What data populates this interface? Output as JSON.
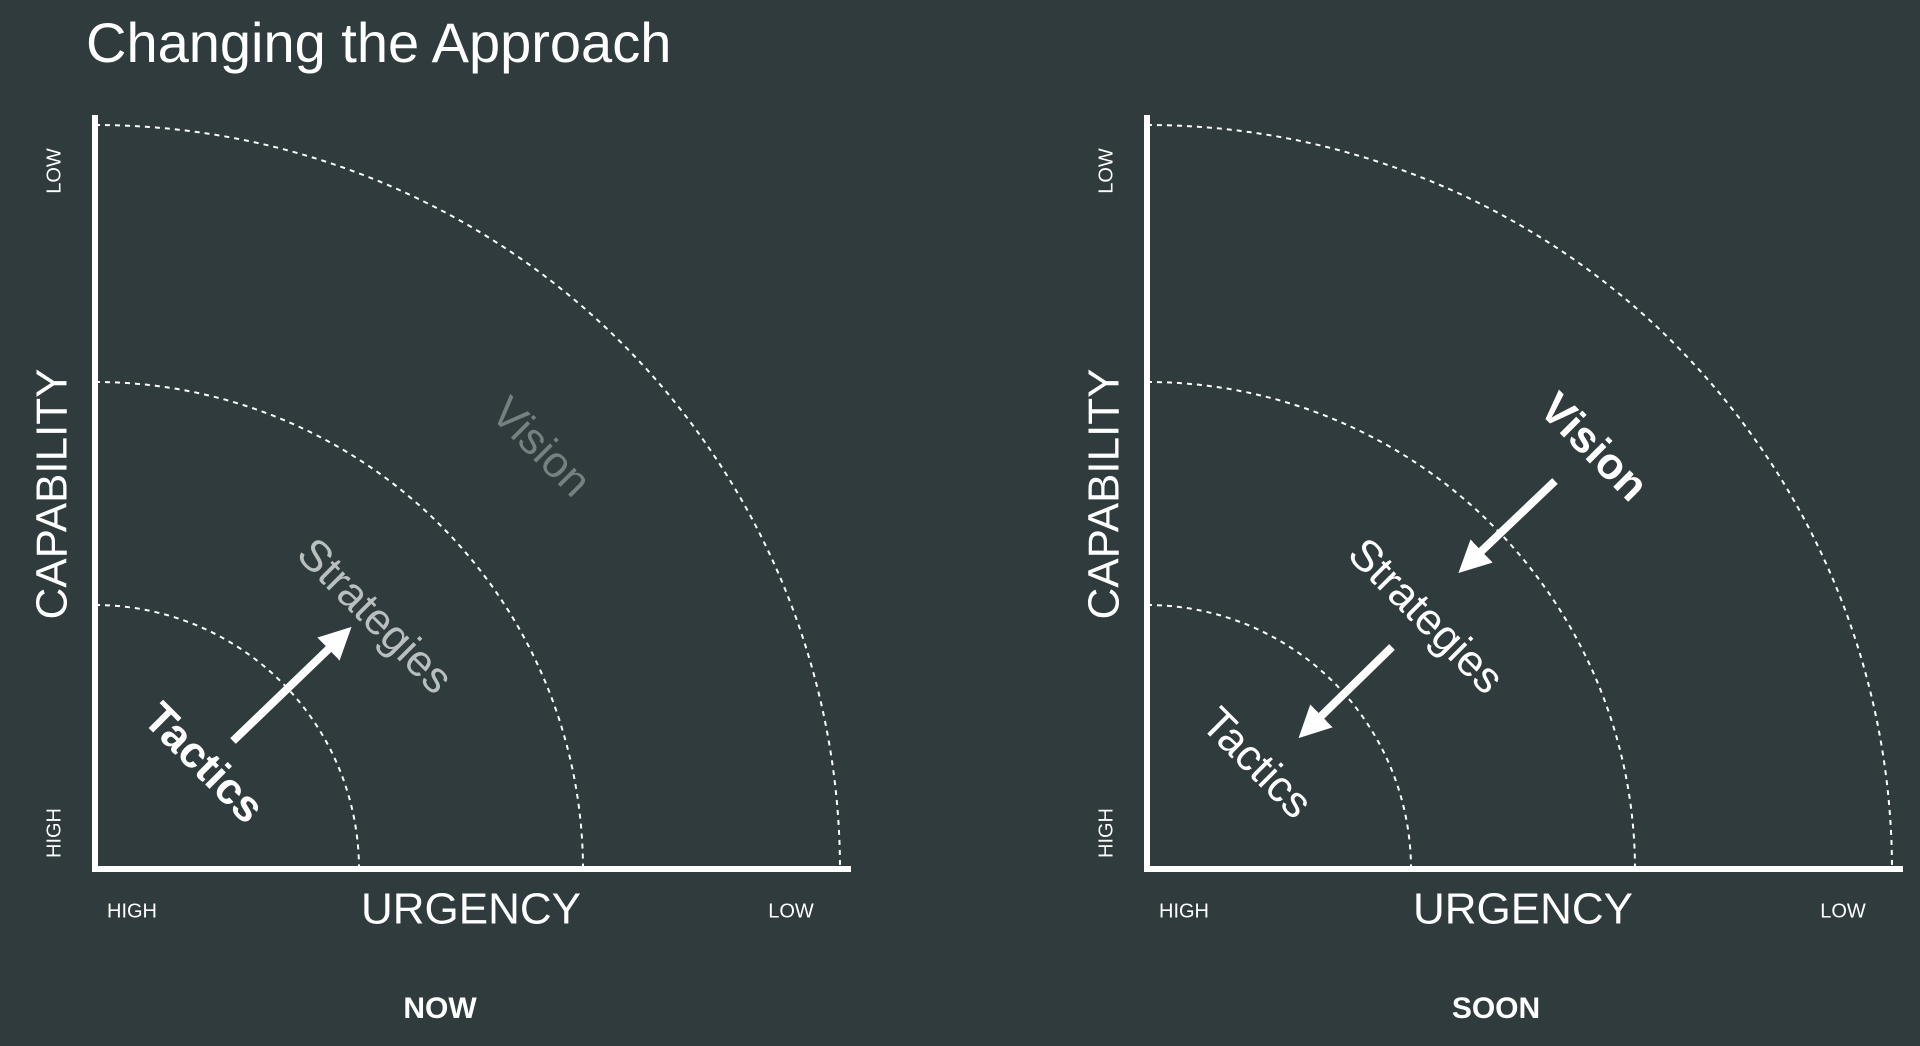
{
  "title": "Changing the Approach",
  "panels": [
    {
      "y_low": "LOW",
      "y_high": "HIGH",
      "y_label": "CAPABILITY",
      "x_high": "HIGH",
      "x_label": "URGENCY",
      "x_low": "LOW",
      "caption": "NOW",
      "rings": {
        "inner": "Tactics",
        "middle": "Strategies",
        "outer": "Vision"
      }
    },
    {
      "y_low": "LOW",
      "y_high": "HIGH",
      "y_label": "CAPABILITY",
      "x_high": "HIGH",
      "x_label": "URGENCY",
      "x_low": "LOW",
      "caption": "SOON",
      "rings": {
        "inner": "Tactics",
        "middle": "Strategies",
        "outer": "Vision"
      }
    }
  ]
}
